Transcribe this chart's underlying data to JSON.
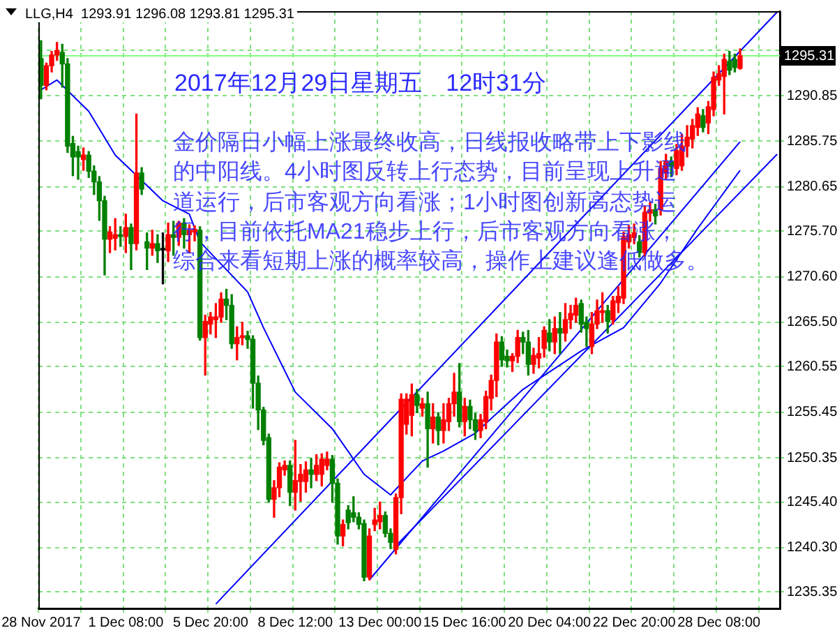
{
  "chart_data": {
    "type": "candlestick",
    "categories": [
      "28 Nov 2017",
      null,
      null,
      null,
      null,
      null,
      null,
      null,
      null,
      null,
      null,
      null,
      null,
      null,
      null,
      null,
      "1 Dec 08:00",
      null,
      null,
      null,
      null,
      null,
      null,
      null,
      null,
      null,
      null,
      null,
      null,
      null,
      null,
      null,
      "5 Dec 20:00",
      null,
      null,
      null,
      null,
      null,
      null,
      null,
      null,
      null,
      null,
      null,
      null,
      null,
      null,
      null,
      "8 Dec 12:00",
      null,
      null,
      null,
      null,
      null,
      null,
      null,
      null,
      null,
      null,
      null,
      null,
      null,
      null,
      null,
      "13 Dec 00:00",
      null,
      null,
      null,
      null,
      null,
      null,
      null,
      null,
      null,
      null,
      null,
      null,
      null,
      null,
      null,
      "15 Dec 16:00",
      null,
      null,
      null,
      null,
      null,
      null,
      null,
      null,
      null,
      null,
      null,
      null,
      null,
      null,
      null,
      "20 Dec 04:00",
      null,
      null,
      null,
      null,
      null,
      null,
      null,
      null,
      null,
      null,
      null,
      null,
      null,
      null,
      null,
      "22 Dec 20:00",
      null,
      null,
      null,
      null,
      null,
      null,
      null,
      null,
      null,
      null,
      null,
      null,
      null,
      null,
      null,
      "28 Dec 08:00",
      null,
      null,
      null,
      null,
      null,
      null,
      null,
      null,
      null,
      null,
      null
    ],
    "series": [
      {
        "type": "candlestick",
        "ohlc": [
          [
            1295,
            1297,
            1290.5,
            1292
          ],
          [
            1292,
            1294.5,
            1291.5,
            1294.2
          ],
          [
            1294.2,
            1295.8,
            1293.5,
            1295.4
          ],
          [
            1295.4,
            1296.8,
            1294.8,
            1295.9
          ],
          [
            1295.7,
            1296.6,
            1291.8,
            1294.4
          ],
          [
            1294.4,
            1295,
            1284.5,
            1285.2
          ],
          [
            1285.5,
            1286.3,
            1281.9,
            1284
          ],
          [
            1284.6,
            1285.2,
            1281.5,
            1284
          ],
          [
            1283.7,
            1285,
            1282.5,
            1284.2
          ],
          [
            1284.2,
            1284.6,
            1281.7,
            1282.4
          ],
          [
            1282.4,
            1283,
            1279.8,
            1281.2
          ],
          [
            1281.2,
            1281.8,
            1276.9,
            1279.1
          ],
          [
            1279.1,
            1279.6,
            1270.8,
            1274.8
          ],
          [
            1274.8,
            1276.2,
            1273.3,
            1275.6
          ],
          [
            1274.9,
            1277.1,
            1273.6,
            1275.3
          ],
          [
            1275.3,
            1276.2,
            1274,
            1275.1
          ],
          [
            1275.1,
            1277.6,
            1273.3,
            1276.1
          ],
          [
            1276.1,
            1276.5,
            1271.4,
            1274.3
          ],
          [
            1274.3,
            1288.8,
            1273.6,
            1282.2
          ],
          [
            1282.2,
            1282.8,
            1279.8,
            1280.4
          ],
          [
            1274.5,
            1275.5,
            1271.4,
            1273.8
          ],
          [
            1273.8,
            1275.8,
            1273,
            1274.3
          ],
          [
            1274.3,
            1275.3,
            1272.2,
            1273.5
          ],
          [
            1273.6,
            1275.5,
            1269.8,
            1273.6
          ],
          [
            1273.5,
            1276.6,
            1272.3,
            1275.3
          ],
          [
            1275.3,
            1276.8,
            1273,
            1275
          ],
          [
            1275,
            1276.8,
            1274.1,
            1276.6
          ],
          [
            1276.6,
            1277.1,
            1273.8,
            1275.3
          ],
          [
            1275.3,
            1276.4,
            1273.3,
            1275.8
          ],
          [
            1275.6,
            1276.3,
            1274.6,
            1275.9
          ],
          [
            1275.8,
            1276.2,
            1263.5,
            1263.8
          ],
          [
            1263.8,
            1266.3,
            1259.6,
            1265.6
          ],
          [
            1265.3,
            1266.6,
            1264.2,
            1266.1
          ],
          [
            1265.8,
            1267.6,
            1263.8,
            1266.1
          ],
          [
            1266.1,
            1268.8,
            1265.5,
            1268.1
          ],
          [
            1268.1,
            1269.2,
            1265.8,
            1267.4
          ],
          [
            1267.4,
            1268.6,
            1262.6,
            1263.1
          ],
          [
            1263.1,
            1265,
            1261.3,
            1263.8
          ],
          [
            1263.8,
            1265.5,
            1263,
            1264
          ],
          [
            1264,
            1264.5,
            1262.6,
            1263.6
          ],
          [
            1263.6,
            1264,
            1255.9,
            1258.7
          ],
          [
            1258.7,
            1259.5,
            1253.5,
            1255.7
          ],
          [
            1255.7,
            1256,
            1251.8,
            1252.3
          ],
          [
            1252.6,
            1253,
            1245.4,
            1245.7
          ],
          [
            1245.7,
            1247.8,
            1243.7,
            1247
          ],
          [
            1247,
            1249.8,
            1246,
            1249.3
          ],
          [
            1249,
            1250,
            1248.4,
            1249.5
          ],
          [
            1249.5,
            1250,
            1245,
            1246.5
          ],
          [
            1246.5,
            1252.3,
            1244.5,
            1247.8
          ],
          [
            1247.7,
            1249.6,
            1245.5,
            1248.5
          ],
          [
            1247.7,
            1249.9,
            1246.5,
            1249
          ],
          [
            1249,
            1250.3,
            1247,
            1248.5
          ],
          [
            1248.5,
            1250.7,
            1247.8,
            1249.5
          ],
          [
            1248.5,
            1250.8,
            1247.2,
            1250.2
          ],
          [
            1249.5,
            1251,
            1249,
            1250.2
          ],
          [
            1250.2,
            1250.6,
            1245.4,
            1247.5
          ],
          [
            1247.5,
            1248,
            1240.7,
            1241.6
          ],
          [
            1241.6,
            1243.4,
            1240.5,
            1242.9
          ],
          [
            1244.5,
            1245,
            1242.4,
            1243.1
          ],
          [
            1244.2,
            1246,
            1243.2,
            1243.7
          ],
          [
            1243.7,
            1244.2,
            1242.4,
            1242.9
          ],
          [
            1243,
            1243.4,
            1236.6,
            1237
          ],
          [
            1237,
            1242.4,
            1236.7,
            1241.6
          ],
          [
            1242.9,
            1244.7,
            1242.2,
            1243.4
          ],
          [
            1243.2,
            1245.4,
            1242.4,
            1243.9
          ],
          [
            1243.9,
            1244.3,
            1241.5,
            1241.9
          ],
          [
            1241.9,
            1242.4,
            1240.2,
            1240.9
          ],
          [
            1240.1,
            1246.3,
            1239.6,
            1245.9
          ],
          [
            1245.9,
            1257.5,
            1244.1,
            1256.9
          ],
          [
            1254.1,
            1257.5,
            1253,
            1256.9
          ],
          [
            1255.1,
            1258.6,
            1252.8,
            1257.4
          ],
          [
            1257.4,
            1258,
            1255.4,
            1256.2
          ],
          [
            1255.9,
            1257,
            1255,
            1256.4
          ],
          [
            1256.4,
            1257.7,
            1249.3,
            1253.6
          ],
          [
            1253.6,
            1256.4,
            1252,
            1254.9
          ],
          [
            1254.9,
            1255.4,
            1251.8,
            1253.4
          ],
          [
            1253.4,
            1256.4,
            1252,
            1254.6
          ],
          [
            1254.4,
            1257,
            1253.4,
            1256.4
          ],
          [
            1256.4,
            1259.8,
            1255,
            1257.7
          ],
          [
            1257.7,
            1260.9,
            1253.8,
            1254.4
          ],
          [
            1254.4,
            1257,
            1252.8,
            1256.1
          ],
          [
            1256.1,
            1256.8,
            1253.6,
            1254.6
          ],
          [
            1254.6,
            1255.3,
            1252.4,
            1253.4
          ],
          [
            1253.4,
            1255.2,
            1252.6,
            1254.6
          ],
          [
            1254.4,
            1257.8,
            1253.6,
            1257.2
          ],
          [
            1257,
            1259.6,
            1255.7,
            1259
          ],
          [
            1259,
            1264.2,
            1257.2,
            1263.3
          ],
          [
            1263.3,
            1263.9,
            1260.6,
            1261.3
          ],
          [
            1261.7,
            1262.4,
            1260.5,
            1261.2
          ],
          [
            1261.2,
            1262,
            1260,
            1261.7
          ],
          [
            1261.7,
            1264.6,
            1261,
            1263.8
          ],
          [
            1263.8,
            1264.4,
            1262,
            1263.3
          ],
          [
            1263.3,
            1264.6,
            1259.6,
            1260.8
          ],
          [
            1260.8,
            1262.6,
            1259.8,
            1261.8
          ],
          [
            1261.5,
            1263.8,
            1260.4,
            1262
          ],
          [
            1262.6,
            1265,
            1261.6,
            1264.6
          ],
          [
            1264.3,
            1265.8,
            1262.3,
            1263.3
          ],
          [
            1263.3,
            1266.1,
            1262,
            1264.8
          ],
          [
            1264.8,
            1266.6,
            1262,
            1264.3
          ],
          [
            1264.3,
            1267.6,
            1263.4,
            1265.8
          ],
          [
            1265.8,
            1267.4,
            1264.8,
            1266.5
          ],
          [
            1266.3,
            1268.2,
            1265.5,
            1267.4
          ],
          [
            1267.6,
            1268,
            1264.4,
            1265.3
          ],
          [
            1265.5,
            1266.1,
            1262.8,
            1264.8
          ],
          [
            1262.8,
            1266.6,
            1262,
            1265.3
          ],
          [
            1265.3,
            1268,
            1264.8,
            1266.8
          ],
          [
            1266.6,
            1268.8,
            1265.5,
            1266.8
          ],
          [
            1266.8,
            1267.4,
            1264.3,
            1265.6
          ],
          [
            1265.8,
            1268.4,
            1265.3,
            1267.9
          ],
          [
            1267.7,
            1269.5,
            1266.6,
            1268.4
          ],
          [
            1268.2,
            1275.6,
            1267.6,
            1275
          ],
          [
            1274.5,
            1276.3,
            1273.8,
            1275.3
          ],
          [
            1275,
            1276.5,
            1274.3,
            1275.5
          ],
          [
            1274.5,
            1275.2,
            1272.8,
            1273.3
          ],
          [
            1273.3,
            1278.5,
            1272.9,
            1277.8
          ],
          [
            1277.7,
            1278.9,
            1276.8,
            1278.1
          ],
          [
            1278.1,
            1278.7,
            1276.5,
            1277.4
          ],
          [
            1278.1,
            1283.5,
            1277.5,
            1282.7
          ],
          [
            1282.2,
            1284.3,
            1281.5,
            1283.5
          ],
          [
            1283.5,
            1284,
            1281.8,
            1282.9
          ],
          [
            1282.7,
            1285.4,
            1282,
            1284.7
          ],
          [
            1283,
            1286.5,
            1282.5,
            1285.2
          ],
          [
            1285.2,
            1287.5,
            1284,
            1286.2
          ],
          [
            1286,
            1288.2,
            1285,
            1287.5
          ],
          [
            1287.3,
            1289.5,
            1286.4,
            1288.8
          ],
          [
            1288.6,
            1289.3,
            1286.8,
            1287.3
          ],
          [
            1287.8,
            1290.2,
            1286.6,
            1289.6
          ],
          [
            1289.3,
            1293.5,
            1288.6,
            1292.9
          ],
          [
            1292.6,
            1294.2,
            1292,
            1293.3
          ],
          [
            1293,
            1295.5,
            1288.8,
            1294.9
          ],
          [
            1294.7,
            1295.8,
            1293.2,
            1293.7
          ],
          [
            1294.9,
            1295.5,
            1293.5,
            1294
          ],
          [
            1293.91,
            1296.08,
            1293.81,
            1295.31
          ],
          null,
          null,
          null,
          null,
          null,
          null,
          null
        ],
        "colors": [
          "#008000",
          "#ff0000",
          "#ff0000",
          "#ff0000",
          "#008000",
          "#008000",
          "#008000",
          "#008000",
          "#ff0000",
          "#008000",
          "#008000",
          "#008000",
          "#008000",
          "#ff0000",
          "#ff0000",
          "#008000",
          "#ff0000",
          "#008000",
          "#ff0000",
          "#008000",
          "#008000",
          "#ff0000",
          "#008000",
          "#000000",
          "#ff0000",
          "#008000",
          "#ff0000",
          "#008000",
          "#ff0000",
          "#ff0000",
          "#008000",
          "#ff0000",
          "#ff0000",
          "#ff0000",
          "#ff0000",
          "#008000",
          "#008000",
          "#ff0000",
          "#ff0000",
          "#008000",
          "#008000",
          "#008000",
          "#008000",
          "#008000",
          "#ff0000",
          "#ff0000",
          "#ff0000",
          "#008000",
          "#ff0000",
          "#ff0000",
          "#ff0000",
          "#008000",
          "#ff0000",
          "#ff0000",
          "#ff0000",
          "#008000",
          "#008000",
          "#ff0000",
          "#008000",
          "#008000",
          "#008000",
          "#008000",
          "#ff0000",
          "#ff0000",
          "#ff0000",
          "#008000",
          "#008000",
          "#ff0000",
          "#ff0000",
          "#ff0000",
          "#ff0000",
          "#008000",
          "#ff0000",
          "#008000",
          "#ff0000",
          "#008000",
          "#ff0000",
          "#ff0000",
          "#ff0000",
          "#008000",
          "#ff0000",
          "#008000",
          "#008000",
          "#ff0000",
          "#ff0000",
          "#ff0000",
          "#ff0000",
          "#008000",
          "#008000",
          "#ff0000",
          "#ff0000",
          "#008000",
          "#008000",
          "#ff0000",
          "#ff0000",
          "#ff0000",
          "#008000",
          "#ff0000",
          "#008000",
          "#ff0000",
          "#ff0000",
          "#ff0000",
          "#008000",
          "#008000",
          "#ff0000",
          "#ff0000",
          "#ff0000",
          "#008000",
          "#ff0000",
          "#ff0000",
          "#ff0000",
          "#ff0000",
          "#ff0000",
          "#008000",
          "#ff0000",
          "#ff0000",
          "#008000",
          "#ff0000",
          "#ff0000",
          "#008000",
          "#ff0000",
          "#ff0000",
          "#ff0000",
          "#ff0000",
          "#ff0000",
          "#008000",
          "#ff0000",
          "#ff0000",
          "#ff0000",
          "#ff0000",
          "#008000",
          "#008000",
          "#ff0000",
          null,
          null,
          null,
          null,
          null,
          null,
          null
        ]
      },
      {
        "type": "line",
        "color": "#0000ff",
        "values": [
          1291.5,
          null,
          null,
          1292.6,
          null,
          null,
          null,
          null,
          null,
          1289.1,
          null,
          null,
          null,
          null,
          1284.2,
          null,
          null,
          1282.5,
          null,
          null,
          null,
          null,
          null,
          1279.1,
          null,
          null,
          null,
          null,
          1277.6,
          null,
          1274.5,
          null,
          null,
          null,
          null,
          null,
          null,
          null,
          null,
          1268.9,
          null,
          null,
          1264.9,
          null,
          null,
          null,
          null,
          null,
          1257.7,
          null,
          null,
          null,
          null,
          null,
          null,
          1253.6,
          null,
          null,
          null,
          null,
          null,
          1248.5,
          null,
          null,
          null,
          null,
          1246.2,
          null,
          null,
          null,
          null,
          null,
          1250.0,
          null,
          null,
          null,
          1251.1,
          null,
          null,
          null,
          null,
          null,
          1253.1,
          null,
          null,
          null,
          null,
          null,
          null,
          null,
          null,
          1258.0,
          null,
          null,
          null,
          null,
          null,
          null,
          null,
          null,
          null,
          null,
          1262.3,
          null,
          null,
          null,
          null,
          null,
          null,
          null,
          1264.9,
          null,
          null,
          null,
          null,
          null,
          null,
          1269.9,
          null,
          null,
          null,
          null,
          null,
          null,
          1276.0,
          null,
          null,
          null,
          null,
          null,
          null,
          null,
          1282.5,
          null,
          null,
          null,
          null,
          null,
          null,
          null
        ]
      },
      {
        "type": "line",
        "color": "#0000ff",
        "values": [
          null,
          null,
          null,
          null,
          null,
          null,
          null,
          null,
          null,
          null,
          null,
          null,
          null,
          null,
          null,
          null,
          null,
          null,
          null,
          null,
          null,
          null,
          null,
          null,
          null,
          null,
          null,
          null,
          null,
          null,
          null,
          null,
          null,
          1234.0,
          null,
          null,
          null,
          null,
          null,
          null,
          null,
          null,
          null,
          null,
          null,
          null,
          null,
          null,
          null,
          null,
          null,
          null,
          null,
          null,
          null,
          null,
          null,
          null,
          null,
          null,
          null,
          null,
          null,
          null,
          null,
          null,
          null,
          null,
          null,
          null,
          null,
          null,
          null,
          null,
          null,
          null,
          null,
          null,
          null,
          null,
          null,
          null,
          null,
          null,
          null,
          null,
          null,
          null,
          null,
          null,
          null,
          null,
          null,
          null,
          null,
          null,
          null,
          null,
          null,
          null,
          null,
          null,
          null,
          null,
          null,
          null,
          null,
          null,
          null,
          null,
          null,
          null,
          null,
          null,
          null,
          null,
          null,
          null,
          null,
          null,
          null,
          null,
          null,
          null,
          null,
          null,
          null,
          null,
          null,
          null,
          null,
          null,
          null,
          null,
          null,
          null,
          null,
          null,
          null,
          1300.2
        ]
      },
      {
        "type": "line",
        "color": "#0000ff",
        "values": [
          null,
          null,
          null,
          null,
          null,
          null,
          null,
          null,
          null,
          null,
          null,
          null,
          null,
          null,
          null,
          null,
          null,
          null,
          null,
          null,
          null,
          null,
          null,
          null,
          null,
          null,
          null,
          null,
          null,
          null,
          null,
          null,
          null,
          null,
          null,
          null,
          null,
          null,
          null,
          null,
          null,
          null,
          null,
          null,
          null,
          null,
          null,
          null,
          null,
          null,
          null,
          null,
          null,
          null,
          null,
          null,
          null,
          null,
          null,
          null,
          null,
          null,
          1236.7,
          null,
          null,
          null,
          null,
          null,
          null,
          null,
          null,
          null,
          null,
          null,
          null,
          null,
          null,
          null,
          null,
          null,
          null,
          null,
          null,
          null,
          null,
          null,
          null,
          null,
          null,
          null,
          null,
          null,
          null,
          null,
          null,
          null,
          null,
          null,
          null,
          null,
          null,
          null,
          null,
          null,
          null,
          null,
          null,
          null,
          null,
          null,
          null,
          null,
          null,
          null,
          null,
          null,
          null,
          null,
          null,
          null,
          null,
          null,
          null,
          null,
          null,
          null,
          null,
          null,
          null,
          null,
          null,
          null,
          1285.7,
          null,
          null,
          null,
          null,
          null,
          null,
          null
        ]
      },
      {
        "type": "line",
        "color": "#0000ff",
        "values": [
          null,
          null,
          null,
          null,
          null,
          null,
          null,
          null,
          null,
          null,
          null,
          null,
          null,
          null,
          null,
          null,
          null,
          null,
          null,
          null,
          null,
          null,
          null,
          null,
          null,
          null,
          null,
          null,
          null,
          null,
          null,
          null,
          null,
          null,
          null,
          null,
          null,
          null,
          null,
          null,
          null,
          null,
          null,
          null,
          null,
          null,
          null,
          null,
          null,
          null,
          null,
          null,
          null,
          null,
          null,
          null,
          null,
          null,
          null,
          null,
          null,
          null,
          null,
          null,
          null,
          null,
          null,
          1240.5,
          null,
          null,
          null,
          null,
          null,
          null,
          null,
          null,
          null,
          null,
          null,
          null,
          null,
          null,
          null,
          null,
          null,
          null,
          null,
          null,
          null,
          null,
          null,
          null,
          null,
          null,
          null,
          null,
          null,
          null,
          null,
          null,
          null,
          null,
          null,
          null,
          null,
          null,
          null,
          null,
          null,
          null,
          null,
          null,
          null,
          null,
          null,
          null,
          null,
          null,
          null,
          null,
          null,
          null,
          null,
          null,
          null,
          null,
          null,
          null,
          null,
          null,
          null,
          null,
          null,
          null,
          null,
          null,
          null,
          null,
          null,
          1284.3
        ]
      }
    ],
    "ylim": [
      1233.5,
      1300.3
    ],
    "yticks": [
      1235.35,
      {
        "value": 1240.3,
        "label": "1240.30"
      },
      {
        "value": 1245.4,
        "label": "1245.40"
      },
      1250.35,
      1255.45,
      1260.55,
      {
        "value": 1265.5,
        "label": "1265.50"
      },
      {
        "value": 1270.6,
        "label": "1270.60"
      },
      {
        "value": 1275.7,
        "label": "1275.70"
      },
      1280.65,
      1285.75,
      1290.85,
      {
        "value": 1295.9,
        "label": null
      }
    ],
    "grid": true,
    "ref_lines": [
      {
        "axis": "y",
        "value": 1295.31,
        "label": "1295.31",
        "color": "#80ff80"
      }
    ],
    "annotations": [
      "LLG,H4  1293.91 1296.08 1293.81 1295.31",
      "2017年12月29日星期五　12时31分",
      "金价隔日小幅上涨最终收高，日线报收略带上下影线的中阳线。4小时图反转上行态势，目前呈现上升通道运行，后市客观方向看涨；1小时图创新高态势运行，目前依托MA21稳步上行，后市客观方向看涨；综合来看短期上涨的概率较高，操作上建议逢低做多。"
    ]
  }
}
